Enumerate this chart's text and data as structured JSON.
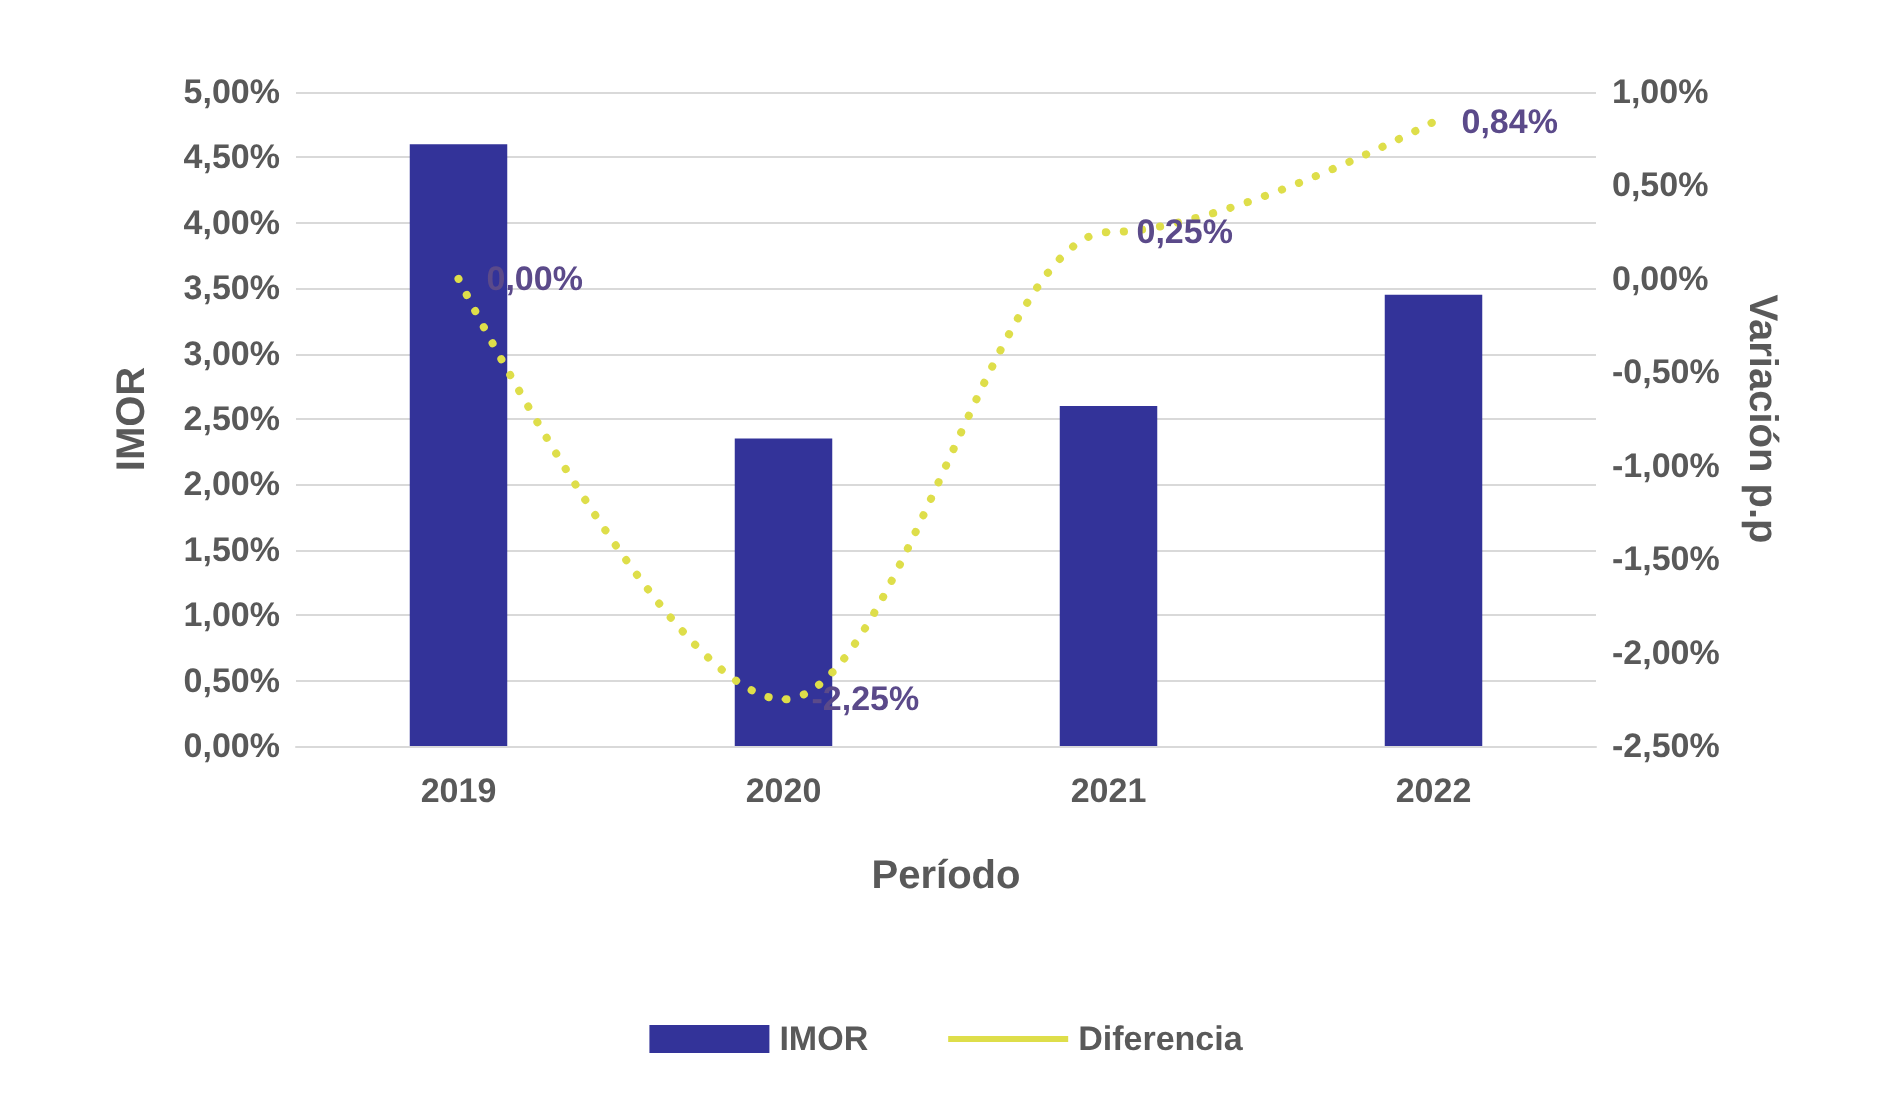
{
  "chart_data": {
    "type": "bar",
    "xlabel": "Período",
    "ylabel": "IMOR",
    "y2label": "Variación p.p",
    "categories": [
      "2019",
      "2020",
      "2021",
      "2022"
    ],
    "series": [
      {
        "name": "IMOR",
        "color": "#333399",
        "values": [
          4.6,
          2.35,
          2.6,
          3.45
        ]
      },
      {
        "name": "Diferencia",
        "type": "line",
        "axis": "y2",
        "color": "#dede4a",
        "line_style": "dotted",
        "values": [
          0,
          -2.25,
          0.25,
          0.84
        ],
        "value_labels": [
          "0,00%",
          "-2,25%",
          "0,25%",
          "0,84%"
        ]
      }
    ],
    "ylim": [
      0,
      5
    ],
    "yticks": [
      {
        "value": 0,
        "label": "0,00%"
      },
      {
        "value": 0.5,
        "label": "0,50%"
      },
      {
        "value": 1,
        "label": "1,00%"
      },
      {
        "value": 1.5,
        "label": "1,50%"
      },
      {
        "value": 2,
        "label": "2,00%"
      },
      {
        "value": 2.5,
        "label": "2,50%"
      },
      {
        "value": 3,
        "label": "3,00%"
      },
      {
        "value": 3.5,
        "label": "3,50%"
      },
      {
        "value": 4,
        "label": "4,00%"
      },
      {
        "value": 4.5,
        "label": "4,50%"
      },
      {
        "value": 5,
        "label": "5,00%"
      }
    ],
    "y2lim": [
      -2.5,
      1
    ],
    "y2ticks": [
      {
        "value": -2.5,
        "label": "-2,50%"
      },
      {
        "value": -2,
        "label": "-2,00%"
      },
      {
        "value": -1.5,
        "label": "-1,50%"
      },
      {
        "value": -1,
        "label": "-1,00%"
      },
      {
        "value": -0.5,
        "label": "-0,50%"
      },
      {
        "value": 0,
        "label": "0,00%"
      },
      {
        "value": 0.5,
        "label": "0,50%"
      },
      {
        "value": 1,
        "label": "1,00%"
      }
    ],
    "grid": "y",
    "legend": "bottom"
  }
}
